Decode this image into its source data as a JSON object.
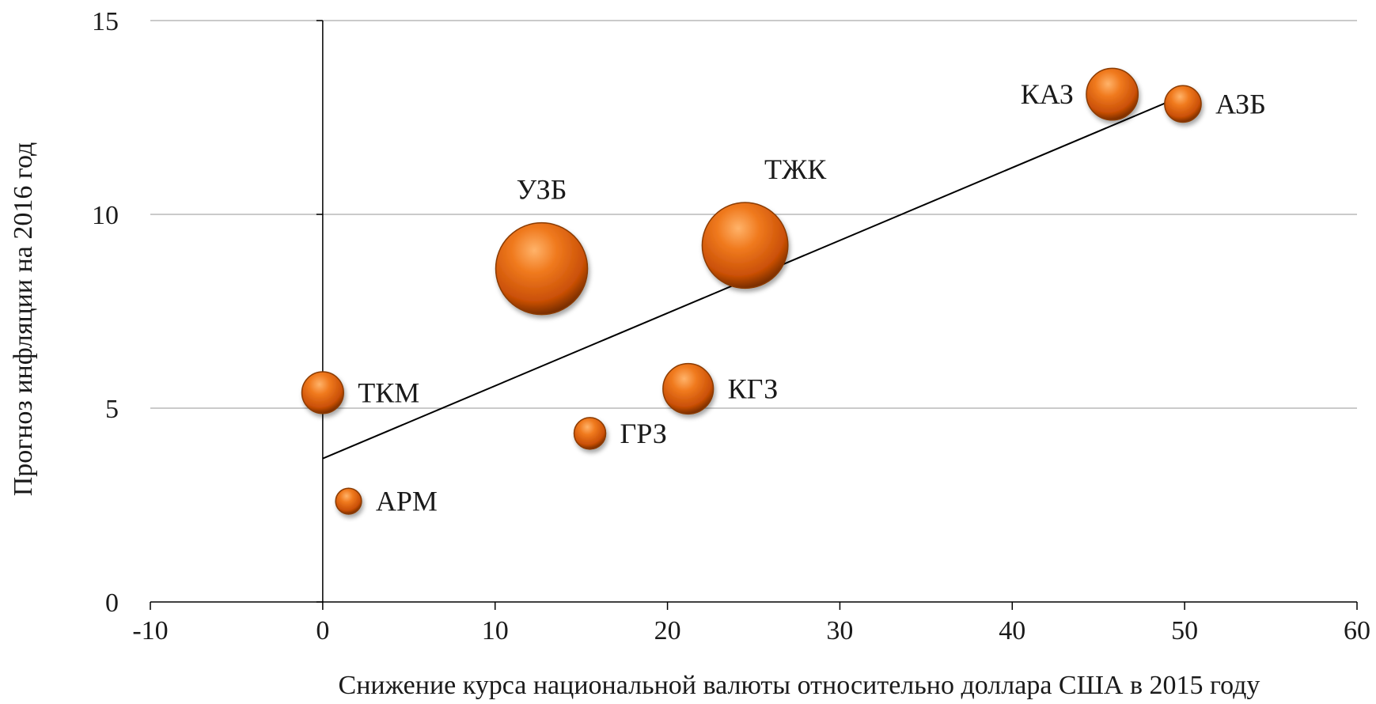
{
  "chart_data": {
    "type": "scatter",
    "subtype": "bubble",
    "title": "",
    "xlabel": "Снижение курса национальной валюты относительно доллара США в 2015 году",
    "ylabel": "Прогноз инфляции на 2016 год",
    "xlim": [
      -10,
      60
    ],
    "ylim": [
      0,
      15
    ],
    "x_ticks": [
      "-10",
      "0",
      "10",
      "20",
      "30",
      "40",
      "50",
      "60"
    ],
    "y_ticks": [
      "0",
      "5",
      "10",
      "15"
    ],
    "grid": "horizontal",
    "bubble_color": "#e8650f",
    "points": [
      {
        "label": "ТКМ",
        "x": 0.0,
        "y": 5.4,
        "size": 1.3,
        "label_pos": "right"
      },
      {
        "label": "АРМ",
        "x": 1.5,
        "y": 2.6,
        "size": 0.5,
        "label_pos": "right"
      },
      {
        "label": "УЗБ",
        "x": 12.7,
        "y": 8.6,
        "size": 6.3,
        "label_pos": "above"
      },
      {
        "label": "ГРЗ",
        "x": 15.5,
        "y": 4.35,
        "size": 0.75,
        "label_pos": "right"
      },
      {
        "label": "КГЗ",
        "x": 21.2,
        "y": 5.5,
        "size": 1.9,
        "label_pos": "right"
      },
      {
        "label": "ТЖК",
        "x": 24.5,
        "y": 9.2,
        "size": 5.5,
        "label_pos": "above-right"
      },
      {
        "label": "КАЗ",
        "x": 45.8,
        "y": 13.1,
        "size": 2.0,
        "label_pos": "left"
      },
      {
        "label": "АЗБ",
        "x": 49.9,
        "y": 12.85,
        "size": 1.0,
        "label_pos": "right"
      }
    ],
    "trendline": {
      "x": [
        0,
        49.3
      ],
      "y": [
        3.7,
        12.95
      ]
    }
  }
}
